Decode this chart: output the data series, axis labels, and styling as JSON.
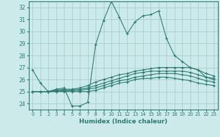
{
  "xlabel": "Humidex (Indice chaleur)",
  "bg_color": "#cceaea",
  "grid_color": "#aacccc",
  "line_color": "#2a7a72",
  "xlim": [
    -0.5,
    23.5
  ],
  "ylim": [
    23.5,
    32.5
  ],
  "yticks": [
    24,
    25,
    26,
    27,
    28,
    29,
    30,
    31,
    32
  ],
  "xticks": [
    0,
    1,
    2,
    3,
    4,
    5,
    6,
    7,
    8,
    9,
    10,
    11,
    12,
    13,
    14,
    15,
    16,
    17,
    18,
    19,
    20,
    21,
    22,
    23
  ],
  "lines": [
    [
      26.8,
      25.7,
      25.0,
      25.2,
      25.3,
      23.8,
      23.8,
      24.1,
      28.9,
      30.9,
      32.5,
      31.2,
      29.8,
      30.8,
      31.3,
      31.4,
      31.7,
      29.4,
      28.0,
      27.5,
      27.0,
      26.8,
      26.2,
      26.1
    ],
    [
      25.0,
      25.0,
      25.0,
      25.1,
      25.2,
      25.2,
      25.3,
      25.5,
      25.8,
      26.0,
      26.2,
      26.4,
      26.5,
      26.7,
      26.8,
      26.9,
      27.0,
      27.0,
      27.0,
      27.0,
      27.0,
      26.8,
      26.5,
      26.3
    ],
    [
      25.0,
      25.0,
      25.0,
      25.1,
      25.1,
      25.1,
      25.2,
      25.3,
      25.5,
      25.7,
      25.9,
      26.1,
      26.3,
      26.5,
      26.6,
      26.7,
      26.7,
      26.7,
      26.7,
      26.7,
      26.6,
      26.4,
      26.2,
      26.0
    ],
    [
      25.0,
      25.0,
      25.0,
      25.0,
      25.1,
      25.1,
      25.1,
      25.2,
      25.3,
      25.5,
      25.7,
      25.9,
      26.0,
      26.2,
      26.3,
      26.4,
      26.5,
      26.5,
      26.5,
      26.4,
      26.3,
      26.1,
      25.9,
      25.8
    ],
    [
      25.0,
      25.0,
      25.0,
      25.0,
      25.0,
      25.0,
      25.0,
      25.0,
      25.1,
      25.3,
      25.5,
      25.7,
      25.8,
      26.0,
      26.1,
      26.1,
      26.2,
      26.2,
      26.1,
      26.0,
      25.9,
      25.7,
      25.6,
      25.5
    ]
  ]
}
